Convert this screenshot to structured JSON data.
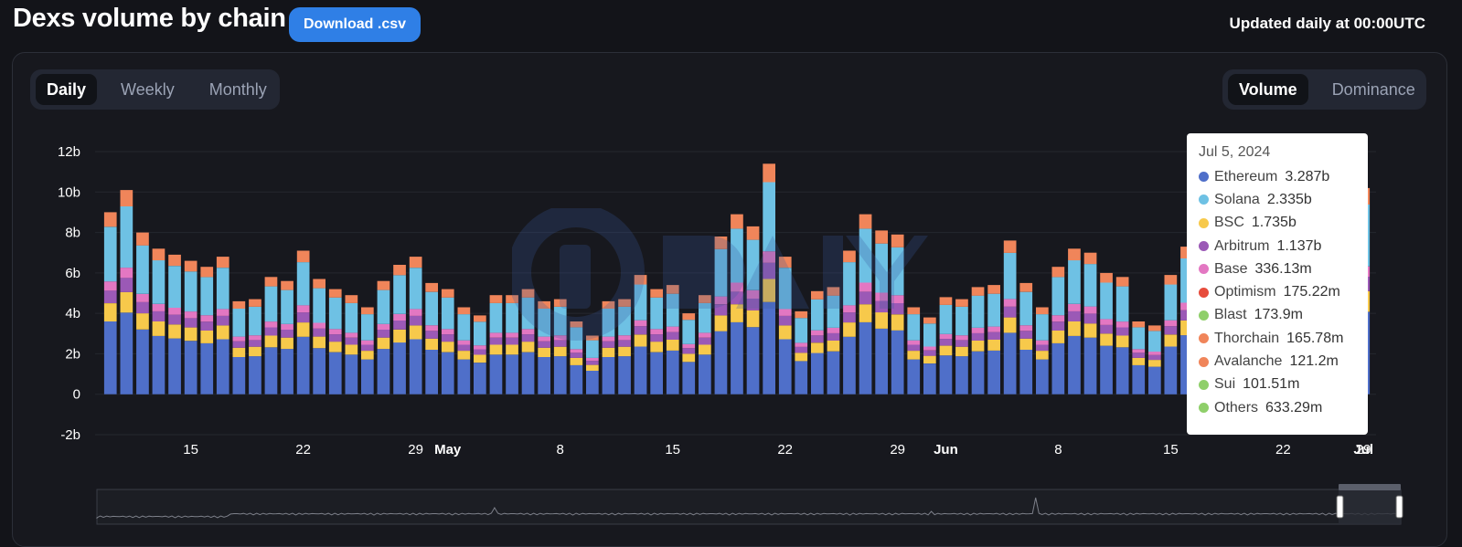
{
  "header": {
    "title": "Dexs volume by chain",
    "download_label": "Download .csv",
    "updated_text": "Updated daily at 00:00UTC"
  },
  "period_tabs": [
    {
      "label": "Daily",
      "active": true
    },
    {
      "label": "Weekly",
      "active": false
    },
    {
      "label": "Monthly",
      "active": false
    }
  ],
  "mode_tabs": [
    {
      "label": "Volume",
      "active": true
    },
    {
      "label": "Dominance",
      "active": false
    }
  ],
  "tooltip": {
    "date": "Jul 5, 2024",
    "rows": [
      {
        "name": "Ethereum",
        "value": "3.287b",
        "color": "#4f6fc9"
      },
      {
        "name": "Solana",
        "value": "2.335b",
        "color": "#6ec1e4"
      },
      {
        "name": "BSC",
        "value": "1.735b",
        "color": "#f7c94b"
      },
      {
        "name": "Arbitrum",
        "value": "1.137b",
        "color": "#9b59b6"
      },
      {
        "name": "Base",
        "value": "336.13m",
        "color": "#e377c2"
      },
      {
        "name": "Optimism",
        "value": "175.22m",
        "color": "#e74c3c"
      },
      {
        "name": "Blast",
        "value": "173.9m",
        "color": "#8fcf6a"
      },
      {
        "name": "Thorchain",
        "value": "165.78m",
        "color": "#f0855a"
      },
      {
        "name": "Avalanche",
        "value": "121.2m",
        "color": "#f0855a"
      },
      {
        "name": "Sui",
        "value": "101.51m",
        "color": "#8fcf6a"
      },
      {
        "name": "Others",
        "value": "633.29m",
        "color": "#8fcf6a"
      }
    ]
  },
  "chart_data": {
    "type": "bar",
    "stacked": true,
    "x_tick_labels": [
      "15",
      "22",
      "29",
      "May",
      "8",
      "15",
      "22",
      "29",
      "Jun",
      "8",
      "15",
      "22",
      "29",
      "Jul"
    ],
    "y_tick_labels": [
      "12b",
      "10b",
      "8b",
      "6b",
      "4b",
      "2b",
      "0",
      "-2b"
    ],
    "ylim": [
      -2,
      12
    ],
    "y_unit": "b",
    "series_colors": [
      "#4f6fc9",
      "#f7c94b",
      "#9b59b6",
      "#e377c2",
      "#6ec1e4",
      "#f0855a"
    ],
    "totals": [
      9.0,
      10.1,
      8.0,
      7.2,
      6.9,
      6.6,
      6.3,
      6.8,
      4.6,
      4.7,
      5.8,
      5.6,
      7.1,
      5.7,
      5.2,
      4.9,
      4.3,
      5.6,
      6.4,
      6.8,
      5.5,
      5.2,
      4.3,
      3.9,
      4.9,
      4.9,
      5.2,
      4.6,
      4.7,
      3.6,
      2.9,
      4.6,
      4.7,
      5.9,
      5.2,
      5.4,
      4.0,
      4.9,
      7.8,
      8.9,
      8.3,
      11.4,
      6.8,
      4.1,
      5.1,
      5.3,
      7.1,
      8.9,
      8.1,
      7.9,
      4.3,
      3.8,
      4.8,
      4.7,
      5.3,
      5.4,
      7.6,
      5.5,
      4.3,
      6.3,
      7.2,
      7.0,
      6.0,
      5.8,
      3.6,
      3.4,
      5.9,
      7.3,
      5.0,
      5.1,
      5.4,
      5.2,
      6.1,
      5.4,
      4.5,
      4.0,
      6.9,
      6.5,
      10.2
    ],
    "tooltip_date": "Jul 5, 2024"
  }
}
